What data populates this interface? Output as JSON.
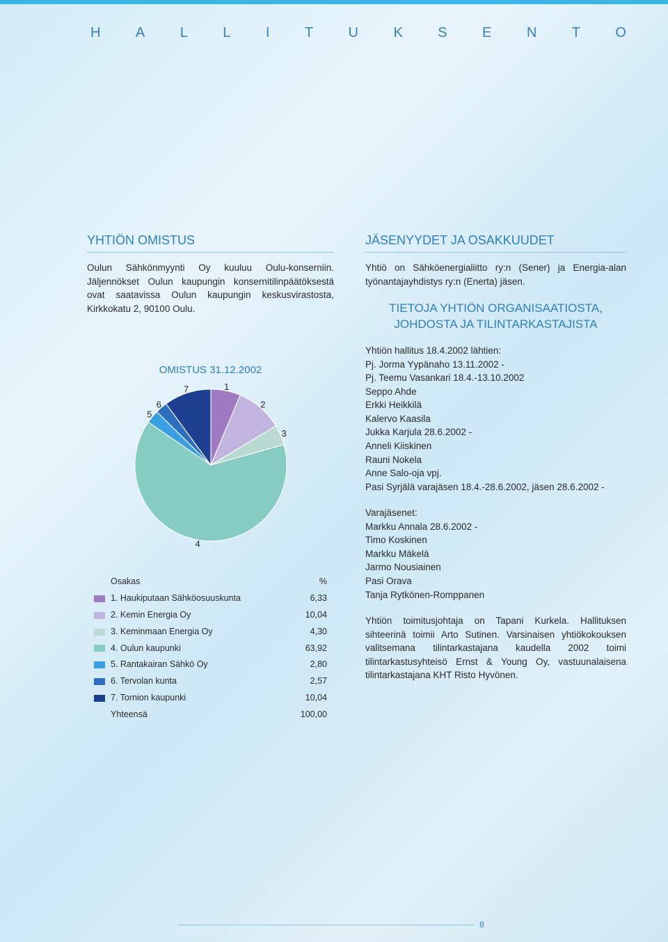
{
  "header_letters": [
    "H",
    "A",
    "L",
    "L",
    "I",
    "T",
    "U",
    "K",
    "S",
    "E",
    "N",
    "T",
    "O"
  ],
  "left": {
    "h1": "YHTIÖN OMISTUS",
    "para1": "Oulun Sähkönmyynti Oy kuuluu Oulu-konserniin. Jäljennökset Oulun kaupungin konsernitilinpäätöksestä ovat saatavissa Oulun kaupungin keskusvirastosta, Kirkkokatu 2, 90100 Oulu.",
    "chart": {
      "type": "pie",
      "title": "OMISTUS 31.12.2002",
      "legend_header": {
        "name": "Osakas",
        "pct": "%"
      },
      "slices": [
        {
          "n": 1,
          "name": "Haukiputaan Sähköosuuskunta",
          "pct": "6,33",
          "value": 6.33,
          "color": "#a07bc4"
        },
        {
          "n": 2,
          "name": "Kemin Energia Oy",
          "pct": "10,04",
          "value": 10.04,
          "color": "#c1b5e0"
        },
        {
          "n": 3,
          "name": "Keminmaan Energia Oy",
          "pct": "4,30",
          "value": 4.3,
          "color": "#bad9d2"
        },
        {
          "n": 4,
          "name": "Oulun kaupunki",
          "pct": "63,92",
          "value": 63.92,
          "color": "#87ccc3"
        },
        {
          "n": 5,
          "name": "Rantakairan Sähkö Oy",
          "pct": "2,80",
          "value": 2.8,
          "color": "#3a9fe0"
        },
        {
          "n": 6,
          "name": "Tervolan kunta",
          "pct": "2,57",
          "value": 2.57,
          "color": "#2d6fbd"
        },
        {
          "n": 7,
          "name": "Tornion kaupunki",
          "pct": "10,04",
          "value": 10.04,
          "color": "#1e3e8f"
        }
      ],
      "total_label": "Yhteensä",
      "total_value": "100,00",
      "label_fontsize": 12,
      "title_fontsize": 15,
      "title_color": "#2f7fb8",
      "background": "transparent",
      "stroke": "#ffffff",
      "stroke_width": 1
    }
  },
  "right": {
    "h1": "JÄSENYYDET JA OSAKKUUDET",
    "para1": "Yhtiö on Sähköenergialiitto ry:n (Sener) ja Energia-alan työnantajayhdistys ry:n (Enerta) jäsen.",
    "h2": "TIETOJA YHTIÖN ORGANISAATIOSTA, JOHDOSTA JA TILINTARKASTAJISTA",
    "board_intro": "Yhtiön hallitus 18.4.2002 lähtien:",
    "board": [
      "Pj. Jorma Yypänaho 13.11.2002 -",
      "Pj. Teemu Vasankari 18.4.-13.10.2002",
      "Seppo Ahde",
      "Erkki Heikkilä",
      "Kalervo Kaasila",
      "Jukka Karjula 28.6.2002 -",
      "Anneli Kiiskinen",
      "Rauni Nokela",
      "Anne Salo-oja vpj.",
      "Pasi Syrjälä varajäsen 18.4.-28.6.2002, jäsen 28.6.2002 -"
    ],
    "deputies_intro": "Varajäsenet:",
    "deputies": [
      "Markku Annala 28.6.2002 -",
      "Timo Koskinen",
      "Markku Mäkelä",
      "Jarmo Nousiainen",
      "Pasi Orava",
      "Tanja Rytkönen-Romppanen"
    ],
    "para2": "Yhtiön toimitusjohtaja on Tapani Kurkela. Hallituksen sihteerinä toimii Arto Sutinen. Varsinaisen yhtiökokouksen valitsemana tilintarkastajana kaudella 2002 toimi tilintarkastusyhteisö Ernst & Young Oy, vastuunalaisena tilintarkastajana KHT Risto Hyvönen."
  },
  "page_number": "8"
}
